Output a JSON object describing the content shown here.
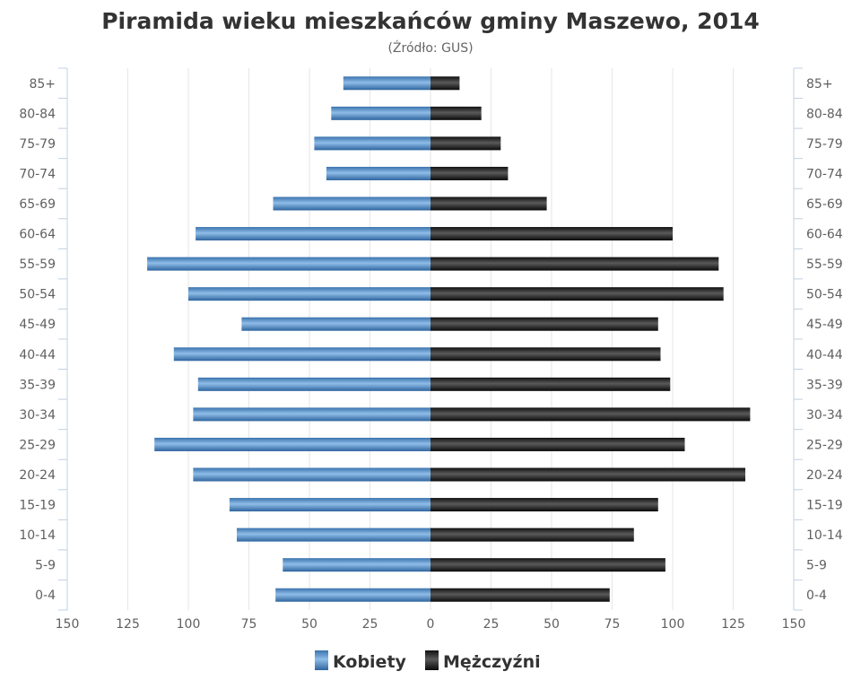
{
  "chart_data": {
    "type": "bar",
    "orientation": "horizontal",
    "title": "Piramida wieku mieszkańców gminy Maszewo, 2014",
    "subtitle": "(Źródło: GUS)",
    "categories": [
      "85+",
      "80-84",
      "75-79",
      "70-74",
      "65-69",
      "60-64",
      "55-59",
      "50-54",
      "45-49",
      "40-44",
      "35-39",
      "30-34",
      "25-29",
      "20-24",
      "15-19",
      "10-14",
      "5-9",
      "0-4"
    ],
    "series": [
      {
        "name": "Kobiety",
        "color": "#4a86c5",
        "values": [
          36,
          41,
          48,
          43,
          65,
          97,
          117,
          100,
          78,
          106,
          96,
          98,
          114,
          98,
          83,
          80,
          61,
          64
        ]
      },
      {
        "name": "Mężczyźni",
        "color": "#1a1a1a",
        "values": [
          12,
          21,
          29,
          32,
          48,
          100,
          119,
          121,
          94,
          95,
          99,
          132,
          105,
          130,
          94,
          84,
          97,
          74
        ]
      }
    ],
    "xaxis_ticks": [
      "150",
      "125",
      "100",
      "75",
      "50",
      "25",
      "0",
      "25",
      "50",
      "75",
      "100",
      "125",
      "150"
    ],
    "xlim": [
      -150,
      150
    ],
    "grid": true,
    "legend_position": "bottom-center"
  }
}
